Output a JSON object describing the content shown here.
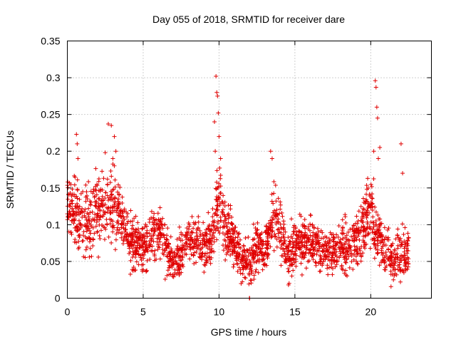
{
  "chart_data": {
    "type": "scatter",
    "title": "Day 055 of 2018, SRMTID for receiver dare",
    "xlabel": "GPS time / hours",
    "ylabel": "SRMTID / TECUs",
    "xlim": [
      0,
      24
    ],
    "ylim": [
      0,
      0.35
    ],
    "xticks": [
      0,
      5,
      10,
      15,
      20
    ],
    "xtick_labels": [
      "0",
      "5",
      "10",
      "15",
      "20"
    ],
    "yticks": [
      0,
      0.05,
      0.1,
      0.15,
      0.2,
      0.25,
      0.3,
      0.35
    ],
    "ytick_labels": [
      "0",
      "0.05",
      "0.1",
      "0.15",
      "0.2",
      "0.25",
      "0.3",
      "0.35"
    ],
    "grid": true,
    "marker": "plus",
    "color": "#e00000",
    "series": [
      {
        "name": "SRMTID",
        "profile_x": [
          0,
          0.5,
          1,
          1.5,
          2,
          2.5,
          3,
          3.5,
          4,
          4.5,
          5,
          5.5,
          6,
          6.5,
          7,
          7.5,
          8,
          8.5,
          9,
          9.5,
          10,
          10.5,
          11,
          11.5,
          12,
          12.5,
          13,
          13.5,
          14,
          14.5,
          15,
          15.5,
          16,
          16.5,
          17,
          17.5,
          18,
          18.5,
          19,
          19.5,
          20,
          20.5,
          21,
          21.5,
          22,
          22.5
        ],
        "profile_mean": [
          0.13,
          0.11,
          0.11,
          0.11,
          0.12,
          0.12,
          0.13,
          0.12,
          0.08,
          0.07,
          0.07,
          0.08,
          0.09,
          0.07,
          0.05,
          0.06,
          0.09,
          0.08,
          0.07,
          0.08,
          0.14,
          0.09,
          0.08,
          0.05,
          0.05,
          0.07,
          0.06,
          0.12,
          0.09,
          0.06,
          0.07,
          0.07,
          0.08,
          0.07,
          0.06,
          0.06,
          0.07,
          0.07,
          0.08,
          0.09,
          0.13,
          0.08,
          0.06,
          0.05,
          0.06,
          0.06
        ],
        "profile_spread": [
          0.035,
          0.04,
          0.04,
          0.04,
          0.04,
          0.04,
          0.045,
          0.04,
          0.03,
          0.03,
          0.03,
          0.03,
          0.03,
          0.03,
          0.025,
          0.03,
          0.03,
          0.03,
          0.03,
          0.03,
          0.05,
          0.035,
          0.03,
          0.025,
          0.025,
          0.03,
          0.03,
          0.04,
          0.035,
          0.03,
          0.03,
          0.03,
          0.03,
          0.03,
          0.025,
          0.025,
          0.03,
          0.03,
          0.03,
          0.035,
          0.05,
          0.035,
          0.03,
          0.025,
          0.03,
          0.03
        ],
        "spikes": [
          {
            "x": 0.6,
            "y": 0.223
          },
          {
            "x": 0.65,
            "y": 0.21
          },
          {
            "x": 0.7,
            "y": 0.19
          },
          {
            "x": 2.7,
            "y": 0.237
          },
          {
            "x": 2.9,
            "y": 0.235
          },
          {
            "x": 3.1,
            "y": 0.22
          },
          {
            "x": 3.2,
            "y": 0.2
          },
          {
            "x": 2.5,
            "y": 0.198
          },
          {
            "x": 3.0,
            "y": 0.19
          },
          {
            "x": 9.8,
            "y": 0.302
          },
          {
            "x": 9.85,
            "y": 0.28
          },
          {
            "x": 9.9,
            "y": 0.275
          },
          {
            "x": 9.95,
            "y": 0.252
          },
          {
            "x": 9.7,
            "y": 0.24
          },
          {
            "x": 10.0,
            "y": 0.22
          },
          {
            "x": 9.75,
            "y": 0.2
          },
          {
            "x": 13.4,
            "y": 0.2
          },
          {
            "x": 13.5,
            "y": 0.19
          },
          {
            "x": 20.3,
            "y": 0.296
          },
          {
            "x": 20.35,
            "y": 0.287
          },
          {
            "x": 20.4,
            "y": 0.26
          },
          {
            "x": 20.45,
            "y": 0.245
          },
          {
            "x": 20.2,
            "y": 0.2
          },
          {
            "x": 20.5,
            "y": 0.19
          },
          {
            "x": 20.6,
            "y": 0.205
          },
          {
            "x": 22.0,
            "y": 0.21
          },
          {
            "x": 22.1,
            "y": 0.17
          },
          {
            "x": 12.0,
            "y": 0.0
          },
          {
            "x": 12.02,
            "y": 0.0
          }
        ]
      }
    ]
  }
}
